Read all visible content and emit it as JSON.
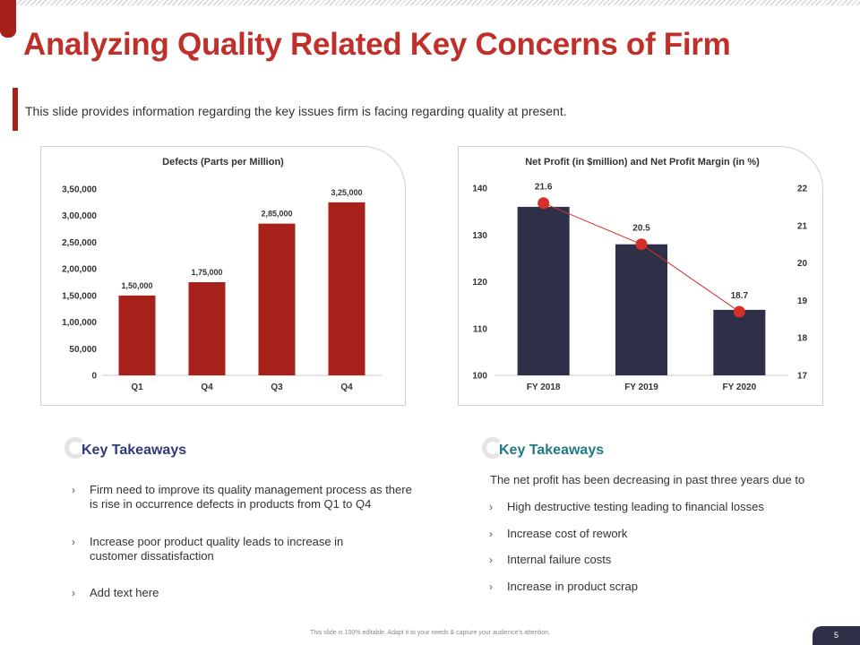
{
  "header": {
    "title": "Analyzing Quality Related Key Concerns of Firm",
    "subtitle": "This slide provides information regarding the key issues firm is facing regarding quality at present."
  },
  "chart_data": [
    {
      "type": "bar",
      "title": "Defects (Parts per Million)",
      "categories": [
        "Q1",
        "Q4",
        "Q3",
        "Q4"
      ],
      "values": [
        150000,
        175000,
        285000,
        325000
      ],
      "value_labels": [
        "1,50,000",
        "1,75,000",
        "2,85,000",
        "3,25,000"
      ],
      "ylim": [
        0,
        350000
      ],
      "yticks": [
        0,
        50000,
        100000,
        150000,
        200000,
        250000,
        300000,
        350000
      ],
      "ytick_labels": [
        "0",
        "50,000",
        "1,00,000",
        "1,50,000",
        "2,00,000",
        "2,50,000",
        "3,00,000",
        "3,50,000"
      ],
      "color": "#a8221c",
      "xlabel": "",
      "ylabel": ""
    },
    {
      "type": "bar+line",
      "title": "Net Profit (in $million) and Net Profit Margin (in %)",
      "categories": [
        "FY 2018",
        "FY 2019",
        "FY 2020"
      ],
      "series": [
        {
          "name": "Net Profit (in $million)",
          "type": "bar",
          "axis": "left",
          "values": [
            136,
            128,
            114
          ],
          "color": "#2e3048"
        },
        {
          "name": "Net Profit Margin (in %)",
          "type": "line",
          "axis": "right",
          "values": [
            21.6,
            20.5,
            18.7
          ],
          "value_labels": [
            "21.6",
            "20.5",
            "18.7"
          ],
          "color": "#d42f2a"
        }
      ],
      "ylim_left": [
        100,
        140
      ],
      "yticks_left": [
        "100",
        "110",
        "120",
        "130",
        "140"
      ],
      "ylim_right": [
        17,
        22
      ],
      "yticks_right": [
        "17",
        "18",
        "19",
        "20",
        "21",
        "22"
      ]
    }
  ],
  "takeaways_left": {
    "heading": "Key Takeaways",
    "color": "#2e3a7a",
    "items": [
      "Firm need to improve its quality management process as there is rise in occurrence defects in products from Q1 to Q4",
      "Increase poor product quality leads to increase in customer dissatisfaction",
      "Add text here"
    ]
  },
  "takeaways_right": {
    "heading": "Key Takeaways",
    "color": "#1e7a84",
    "intro": "The net profit has been decreasing in past three years due to",
    "items": [
      "High destructive testing leading to financial losses",
      "Increase cost of rework",
      "Internal failure costs",
      "Increase in product scrap"
    ]
  },
  "footer": {
    "note": "This slide is 100% editable. Adapt it to your needs & capture your audience's attention.",
    "page": "5"
  }
}
